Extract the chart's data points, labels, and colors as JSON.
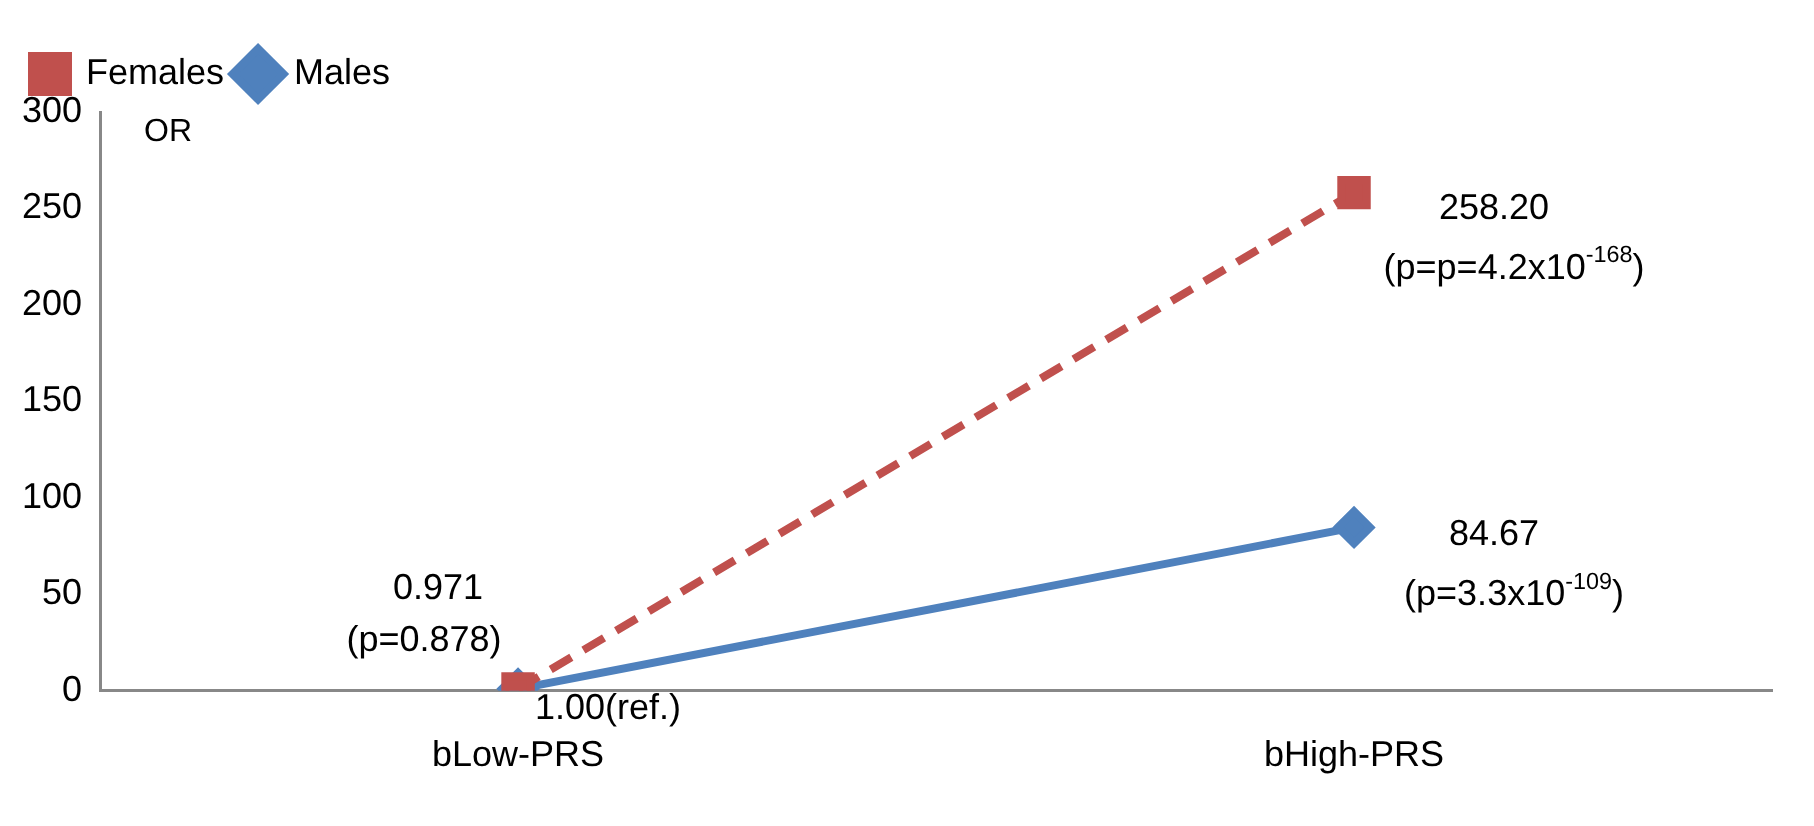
{
  "chart_data": {
    "type": "line",
    "ylabel": "OR",
    "categories": [
      "bLow-PRS",
      "bHigh-PRS"
    ],
    "series": [
      {
        "name": "Males",
        "color": "#4f81bd",
        "values": [
          1.0,
          84.67
        ],
        "marker": "diamond",
        "line_style": "solid"
      },
      {
        "name": "Females",
        "color": "#c0504d",
        "values": [
          0.971,
          258.2
        ],
        "marker": "square",
        "line_style": "dashed"
      }
    ],
    "ylim": [
      0,
      300
    ],
    "yticks": [
      0,
      50,
      100,
      150,
      200,
      250,
      300
    ],
    "grid": false,
    "legend": "top left",
    "annotations": [
      {
        "text": "0.971",
        "x": "bLow-PRS",
        "y": 0.971
      },
      {
        "text": "(p=0.878)",
        "x": "bLow-PRS",
        "y": 0.971
      },
      {
        "text": "1.00(ref.)",
        "x": "bLow-PRS",
        "y": 1.0
      },
      {
        "text": "258.20",
        "x": "bHigh-PRS",
        "y": 258.2
      },
      {
        "text": "(p=p=4.2x10$^{-168}$)",
        "x": "bHigh-PRS",
        "y": 258.2
      },
      {
        "text": "84.67",
        "x": "bHigh-PRS",
        "y": 84.67
      },
      {
        "text": "(p=3.3x10$^{-109}$)",
        "x": "bHigh-PRS",
        "y": 84.67
      }
    ]
  }
}
